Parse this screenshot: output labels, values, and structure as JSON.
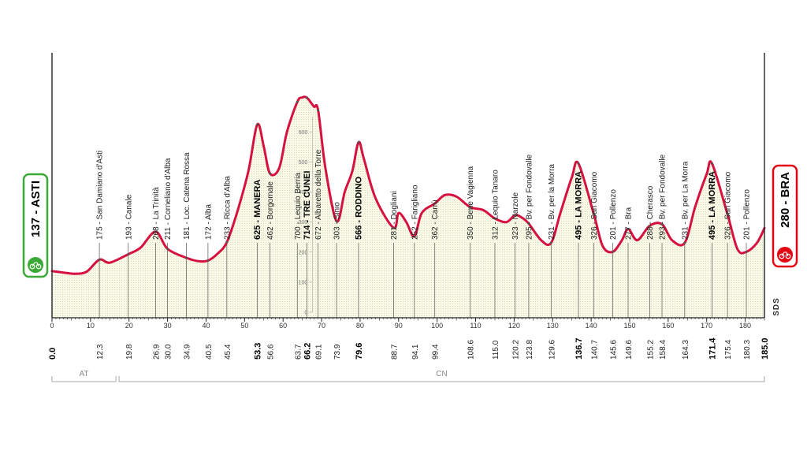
{
  "chart_data": {
    "type": "area",
    "xlabel": "",
    "ylabel": "",
    "xlim": [
      0,
      185
    ],
    "ylim": [
      0,
      900
    ],
    "x_ticks": [
      0,
      10,
      20,
      30,
      40,
      50,
      60,
      70,
      80,
      90,
      100,
      110,
      120,
      130,
      140,
      150,
      160,
      170,
      180
    ],
    "y_ticks": [
      0,
      100,
      200,
      300,
      400,
      500,
      600
    ],
    "colors": {
      "profile_line": "#d6113f",
      "profile_fill": "#f5f7dc",
      "start": "#3aa935",
      "finish": "#e30613"
    },
    "start": {
      "km": 0.0,
      "km_label": "0.0",
      "elevation": 137,
      "label": "137 - ASTI"
    },
    "finish": {
      "km": 185.0,
      "km_label": "185.0",
      "elevation": 280,
      "label": "280 - BRA"
    },
    "regions": [
      {
        "label": "AT",
        "from": 0,
        "to": 17
      },
      {
        "label": "CN",
        "from": 17,
        "to": 185
      }
    ],
    "brand": "SDS",
    "profile": [
      [
        0,
        137
      ],
      [
        3,
        132
      ],
      [
        6,
        128
      ],
      [
        9,
        135
      ],
      [
        12.3,
        175
      ],
      [
        15,
        165
      ],
      [
        19.8,
        193
      ],
      [
        23,
        215
      ],
      [
        26.9,
        268
      ],
      [
        30.0,
        211
      ],
      [
        34.9,
        181
      ],
      [
        38,
        170
      ],
      [
        40.5,
        172
      ],
      [
        43,
        195
      ],
      [
        45.4,
        233
      ],
      [
        48,
        330
      ],
      [
        51,
        470
      ],
      [
        53.3,
        625
      ],
      [
        55,
        550
      ],
      [
        56.6,
        462
      ],
      [
        59,
        480
      ],
      [
        61,
        600
      ],
      [
        63.7,
        700
      ],
      [
        65,
        715
      ],
      [
        66.2,
        714
      ],
      [
        68,
        685
      ],
      [
        69.1,
        672
      ],
      [
        71,
        480
      ],
      [
        73.9,
        303
      ],
      [
        76,
        400
      ],
      [
        78,
        470
      ],
      [
        79.6,
        566
      ],
      [
        81,
        510
      ],
      [
        84,
        380
      ],
      [
        88.7,
        281
      ],
      [
        90,
        330
      ],
      [
        92,
        300
      ],
      [
        94.1,
        252
      ],
      [
        96,
        330
      ],
      [
        99.4,
        362
      ],
      [
        102,
        390
      ],
      [
        105,
        385
      ],
      [
        108.6,
        350
      ],
      [
        112,
        340
      ],
      [
        115.0,
        312
      ],
      [
        118,
        300
      ],
      [
        120.2,
        323
      ],
      [
        122,
        315
      ],
      [
        123.8,
        295
      ],
      [
        127,
        240
      ],
      [
        129.6,
        231
      ],
      [
        132,
        330
      ],
      [
        135,
        450
      ],
      [
        136.7,
        495
      ],
      [
        140.7,
        326
      ],
      [
        143,
        220
      ],
      [
        145.6,
        201
      ],
      [
        148,
        240
      ],
      [
        149.6,
        277
      ],
      [
        152,
        240
      ],
      [
        155.2,
        288
      ],
      [
        158.4,
        293
      ],
      [
        161,
        240
      ],
      [
        164.3,
        231
      ],
      [
        167,
        350
      ],
      [
        170,
        460
      ],
      [
        171.4,
        495
      ],
      [
        175.4,
        326
      ],
      [
        178,
        210
      ],
      [
        180.3,
        201
      ],
      [
        183,
        230
      ],
      [
        185,
        280
      ]
    ],
    "km_labels": [
      {
        "km": 0.0,
        "label": "0.0",
        "bold": true
      },
      {
        "km": 12.3,
        "label": "12.3",
        "bold": false
      },
      {
        "km": 19.8,
        "label": "19.8",
        "bold": false
      },
      {
        "km": 26.9,
        "label": "26.9",
        "bold": false
      },
      {
        "km": 30.0,
        "label": "30.0",
        "bold": false
      },
      {
        "km": 34.9,
        "label": "34.9",
        "bold": false
      },
      {
        "km": 40.5,
        "label": "40.5",
        "bold": false
      },
      {
        "km": 45.4,
        "label": "45.4",
        "bold": false
      },
      {
        "km": 53.3,
        "label": "53.3",
        "bold": true
      },
      {
        "km": 56.6,
        "label": "56.6",
        "bold": false
      },
      {
        "km": 63.7,
        "label": "63.7",
        "bold": false
      },
      {
        "km": 66.2,
        "label": "66.2",
        "bold": true
      },
      {
        "km": 69.1,
        "label": "69.1",
        "bold": false
      },
      {
        "km": 73.9,
        "label": "73.9",
        "bold": false
      },
      {
        "km": 79.6,
        "label": "79.6",
        "bold": true
      },
      {
        "km": 88.7,
        "label": "88.7",
        "bold": false
      },
      {
        "km": 94.1,
        "label": "94.1",
        "bold": false
      },
      {
        "km": 99.4,
        "label": "99.4",
        "bold": false
      },
      {
        "km": 108.6,
        "label": "108.6",
        "bold": false
      },
      {
        "km": 115.0,
        "label": "115.0",
        "bold": false
      },
      {
        "km": 120.2,
        "label": "120.2",
        "bold": false
      },
      {
        "km": 123.8,
        "label": "123.8",
        "bold": false
      },
      {
        "km": 129.6,
        "label": "129.6",
        "bold": false
      },
      {
        "km": 136.7,
        "label": "136.7",
        "bold": true
      },
      {
        "km": 140.7,
        "label": "140.7",
        "bold": false
      },
      {
        "km": 145.6,
        "label": "145.6",
        "bold": false
      },
      {
        "km": 149.6,
        "label": "149.6",
        "bold": false
      },
      {
        "km": 155.2,
        "label": "155.2",
        "bold": false
      },
      {
        "km": 158.4,
        "label": "158.4",
        "bold": false
      },
      {
        "km": 164.3,
        "label": "164.3",
        "bold": false
      },
      {
        "km": 171.4,
        "label": "171.4",
        "bold": true
      },
      {
        "km": 175.4,
        "label": "175.4",
        "bold": false
      },
      {
        "km": 180.3,
        "label": "180.3",
        "bold": false
      },
      {
        "km": 185.0,
        "label": "185.0",
        "bold": true
      }
    ],
    "waypoints": [
      {
        "km": 12.3,
        "elevation": 175,
        "label": "175 - San Damiano d'Asti",
        "bold": false
      },
      {
        "km": 19.8,
        "elevation": 193,
        "label": "193 - Canale",
        "bold": false
      },
      {
        "km": 26.9,
        "elevation": 268,
        "label": "268 - La Trinità",
        "bold": false
      },
      {
        "km": 30.0,
        "elevation": 211,
        "label": "211 - Corneliano d'Alba",
        "bold": false
      },
      {
        "km": 34.9,
        "elevation": 181,
        "label": "181 - Loc. Catena Rossa",
        "bold": false
      },
      {
        "km": 40.5,
        "elevation": 172,
        "label": "172 - Alba",
        "bold": false
      },
      {
        "km": 45.4,
        "elevation": 233,
        "label": "233 - Ricca d'Alba",
        "bold": false
      },
      {
        "km": 53.3,
        "elevation": 625,
        "label": "625 - MANERA",
        "bold": true
      },
      {
        "km": 56.6,
        "elevation": 462,
        "label": "462 - Borgomale",
        "bold": false
      },
      {
        "km": 63.7,
        "elevation": 700,
        "label": "700 - Lequio Berria",
        "bold": false
      },
      {
        "km": 66.2,
        "elevation": 714,
        "label": "714 - TRE CUNEI",
        "bold": true
      },
      {
        "km": 69.1,
        "elevation": 672,
        "label": "672 - Albaretto della Torre",
        "bold": false
      },
      {
        "km": 73.9,
        "elevation": 303,
        "label": "303 - Sinio",
        "bold": false
      },
      {
        "km": 79.6,
        "elevation": 566,
        "label": "566 - RODDINO",
        "bold": true
      },
      {
        "km": 88.7,
        "elevation": 281,
        "label": "281 - Dogliani",
        "bold": false
      },
      {
        "km": 94.1,
        "elevation": 252,
        "label": "252 - Farigliano",
        "bold": false
      },
      {
        "km": 99.4,
        "elevation": 362,
        "label": "362 - Carrù",
        "bold": false
      },
      {
        "km": 108.6,
        "elevation": 350,
        "label": "350 - Bene Vagienna",
        "bold": false
      },
      {
        "km": 115.0,
        "elevation": 312,
        "label": "312 - Lequio Tanaro",
        "bold": false
      },
      {
        "km": 120.2,
        "elevation": 323,
        "label": "323 - Narzole",
        "bold": false
      },
      {
        "km": 123.8,
        "elevation": 295,
        "label": "295 - Bv. per Fondovalle",
        "bold": false
      },
      {
        "km": 129.6,
        "elevation": 231,
        "label": "231 - Bv. per la Morra",
        "bold": false
      },
      {
        "km": 136.7,
        "elevation": 495,
        "label": "495 - LA MORRA",
        "bold": true
      },
      {
        "km": 140.7,
        "elevation": 326,
        "label": "326 - San Giacomo",
        "bold": false
      },
      {
        "km": 145.6,
        "elevation": 201,
        "label": "201 - Pollenzo",
        "bold": false
      },
      {
        "km": 149.6,
        "elevation": 277,
        "label": "277 - Bra",
        "bold": false
      },
      {
        "km": 155.2,
        "elevation": 288,
        "label": "288 - Cherasco",
        "bold": false
      },
      {
        "km": 158.4,
        "elevation": 293,
        "label": "293 - Bv. per Fondovalle",
        "bold": false
      },
      {
        "km": 164.3,
        "elevation": 231,
        "label": "231 - Bv. per La Morra",
        "bold": false
      },
      {
        "km": 171.4,
        "elevation": 495,
        "label": "495 - LA MORRA",
        "bold": true
      },
      {
        "km": 175.4,
        "elevation": 326,
        "label": "326 - San Giacomo",
        "bold": false
      },
      {
        "km": 180.3,
        "elevation": 201,
        "label": "201 - Pollenzo",
        "bold": false
      }
    ]
  }
}
